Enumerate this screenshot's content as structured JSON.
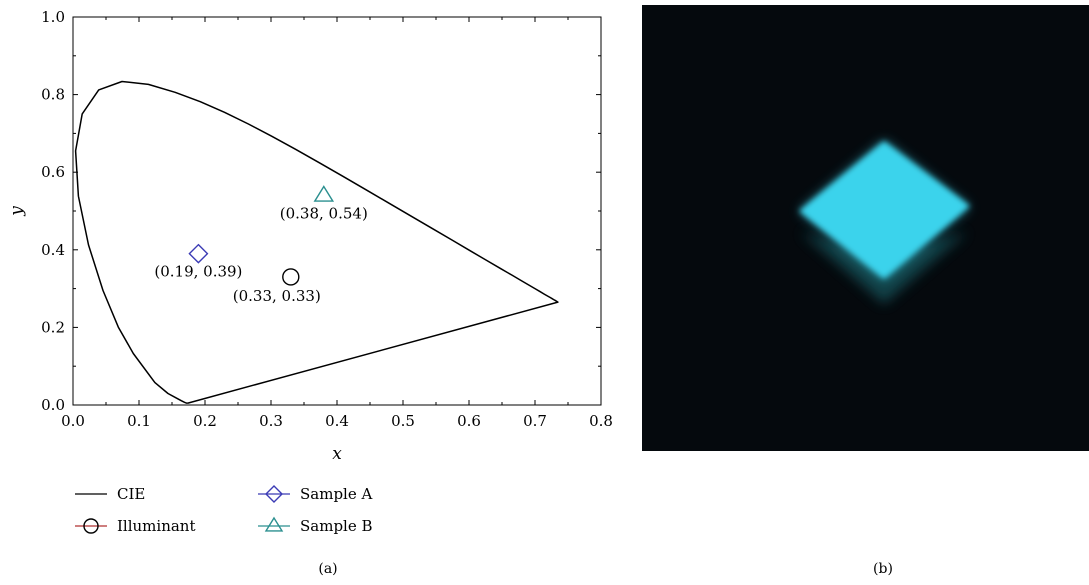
{
  "chart_data": {
    "type": "scatter",
    "xlabel": "x",
    "ylabel": "y",
    "xlim": [
      0.0,
      0.8
    ],
    "ylim": [
      0.0,
      1.0
    ],
    "x_ticks": [
      "0.0",
      "0.1",
      "0.2",
      "0.3",
      "0.4",
      "0.5",
      "0.6",
      "0.7",
      "0.8"
    ],
    "y_ticks": [
      "0.0",
      "0.2",
      "0.4",
      "0.6",
      "0.8",
      "1.0"
    ],
    "grid": false,
    "legend_position": "bottom",
    "series": [
      {
        "name": "CIE",
        "kind": "line",
        "color": "#000000",
        "points": [
          [
            0.1741,
            0.005
          ],
          [
            0.1733,
            0.0048
          ],
          [
            0.1726,
            0.0048
          ],
          [
            0.1714,
            0.0051
          ],
          [
            0.1689,
            0.0069
          ],
          [
            0.1644,
            0.0109
          ],
          [
            0.1566,
            0.0177
          ],
          [
            0.144,
            0.0297
          ],
          [
            0.1241,
            0.0578
          ],
          [
            0.0913,
            0.1327
          ],
          [
            0.0687,
            0.2007
          ],
          [
            0.0454,
            0.295
          ],
          [
            0.0235,
            0.4127
          ],
          [
            0.0082,
            0.5384
          ],
          [
            0.0039,
            0.6548
          ],
          [
            0.0139,
            0.7502
          ],
          [
            0.0389,
            0.812
          ],
          [
            0.0743,
            0.8338
          ],
          [
            0.1142,
            0.8262
          ],
          [
            0.1547,
            0.8059
          ],
          [
            0.1929,
            0.7816
          ],
          [
            0.2296,
            0.7543
          ],
          [
            0.2658,
            0.7243
          ],
          [
            0.3016,
            0.6923
          ],
          [
            0.3373,
            0.6589
          ],
          [
            0.3731,
            0.6245
          ],
          [
            0.4087,
            0.5896
          ],
          [
            0.4441,
            0.5547
          ],
          [
            0.4788,
            0.5202
          ],
          [
            0.5125,
            0.4866
          ],
          [
            0.5448,
            0.4544
          ],
          [
            0.5752,
            0.4242
          ],
          [
            0.6029,
            0.3965
          ],
          [
            0.627,
            0.3725
          ],
          [
            0.6482,
            0.3514
          ],
          [
            0.6658,
            0.334
          ],
          [
            0.6801,
            0.3197
          ],
          [
            0.6915,
            0.3083
          ],
          [
            0.7006,
            0.2993
          ],
          [
            0.7079,
            0.292
          ],
          [
            0.714,
            0.2859
          ],
          [
            0.719,
            0.2809
          ],
          [
            0.723,
            0.277
          ],
          [
            0.726,
            0.274
          ],
          [
            0.7283,
            0.2717
          ],
          [
            0.73,
            0.27
          ],
          [
            0.7347,
            0.2653
          ],
          [
            0.1741,
            0.005
          ]
        ]
      },
      {
        "name": "Illuminant",
        "kind": "marker",
        "marker": "circle",
        "color": "#000000",
        "legend_line_color": "#b03030",
        "points": [
          [
            0.33,
            0.33
          ]
        ]
      },
      {
        "name": "Sample A",
        "kind": "marker",
        "marker": "diamond",
        "color": "#3b3bb5",
        "points": [
          [
            0.19,
            0.39
          ]
        ]
      },
      {
        "name": "Sample B",
        "kind": "marker",
        "marker": "triangle",
        "color": "#2a8f8f",
        "points": [
          [
            0.38,
            0.54
          ]
        ]
      }
    ],
    "annotations": [
      {
        "text": "(0.19, 0.39)",
        "x": 0.19,
        "y": 0.39
      },
      {
        "text": "(0.33, 0.33)",
        "x": 0.33,
        "y": 0.33
      },
      {
        "text": "(0.38, 0.54)",
        "x": 0.38,
        "y": 0.54
      }
    ]
  },
  "panel_labels": {
    "a": "(a)",
    "b": "(b)"
  },
  "photo": {
    "background_color": "#05090d",
    "glow_color": "#3ad3ec",
    "reflection_color": "#1f6f78"
  }
}
